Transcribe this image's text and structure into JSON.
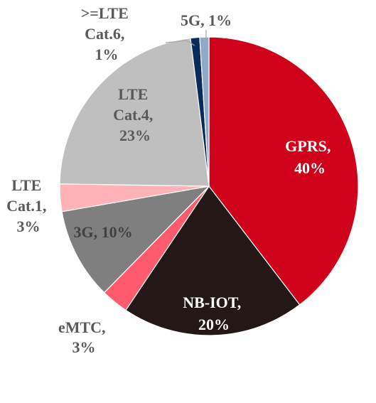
{
  "chart_data": {
    "type": "pie",
    "title": "",
    "start_angle_deg": 0,
    "direction": "clockwise",
    "legend": "none",
    "slices": [
      {
        "label": "GPRS",
        "value": 40,
        "value_text": "40%",
        "color": "#d0021b",
        "label_color": "#ffffff"
      },
      {
        "label": "NB-IOT",
        "value": 20,
        "value_text": "20%",
        "color": "#231815",
        "label_color": "#ffffff"
      },
      {
        "label": "eMTC",
        "value": 3,
        "value_text": "3%",
        "color": "#ff5a6e",
        "label_color": "#595959"
      },
      {
        "label": "3G",
        "value": 10,
        "value_text": "10%",
        "color": "#7f7f7f",
        "label_color": "#404040"
      },
      {
        "label": "LTE Cat.1",
        "value": 3,
        "value_text": "3%",
        "color": "#ffb3b8",
        "label_color": "#595959"
      },
      {
        "label": "LTE Cat.4",
        "value": 23,
        "value_text": "23%",
        "color": "#bfbfbf",
        "label_color": "#595959"
      },
      {
        "label": ">=LTE Cat.6",
        "value": 1,
        "value_text": "1%",
        "color": "#0b2a5c",
        "label_color": "#595959"
      },
      {
        "label": "5G",
        "value": 1,
        "value_text": "1%",
        "color": "#8fa9c9",
        "label_color": "#595959"
      }
    ]
  }
}
